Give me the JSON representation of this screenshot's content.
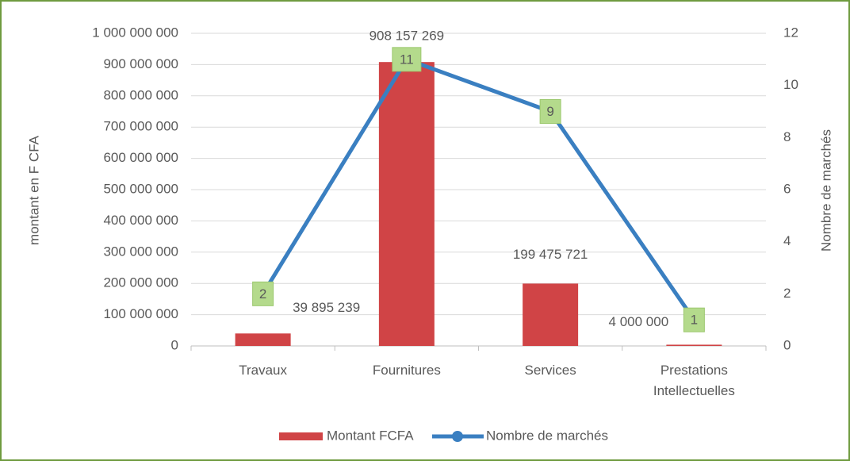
{
  "chart_data": {
    "type": "bar-line",
    "categories": [
      "Travaux",
      "Fournitures",
      "Services",
      "Prestations Intellectuelles"
    ],
    "series": [
      {
        "name": "Montant FCFA",
        "type": "bar",
        "color": "#d04446",
        "values": [
          39895239,
          908157269,
          199475721,
          4000000
        ],
        "value_labels": [
          "39 895 239",
          "908 157 269",
          "199 475 721",
          "4 000 000"
        ]
      },
      {
        "name": "Nombre de marchés",
        "type": "line",
        "axis": "y2",
        "color": "#3a7fc1",
        "values": [
          2,
          11,
          9,
          1
        ]
      }
    ],
    "ylabel": "montant en F CFA",
    "y2label": "Nombre de marchés",
    "ylim": [
      0,
      1000000000
    ],
    "yticks": [
      0,
      {
        "value": 100000000,
        "label": "100 000 000"
      },
      {
        "value": 200000000,
        "label": "200 000 000"
      },
      {
        "value": 300000000,
        "label": "300 000 000"
      },
      {
        "value": 400000000,
        "label": "400 000 000"
      },
      {
        "value": 500000000,
        "label": "500 000 000"
      },
      {
        "value": 600000000,
        "label": "600 000 000"
      },
      {
        "value": 700000000,
        "label": "700 000 000"
      },
      {
        "value": 800000000,
        "label": "800 000 000"
      },
      {
        "value": 900000000,
        "label": "900 000 000"
      },
      {
        "value": 1000000000,
        "label": "1 000 000 000"
      }
    ],
    "y2lim": [
      0,
      12
    ],
    "y2ticks": [
      0,
      2,
      4,
      6,
      8,
      10,
      12
    ],
    "grid": true,
    "legend": "bottom"
  }
}
